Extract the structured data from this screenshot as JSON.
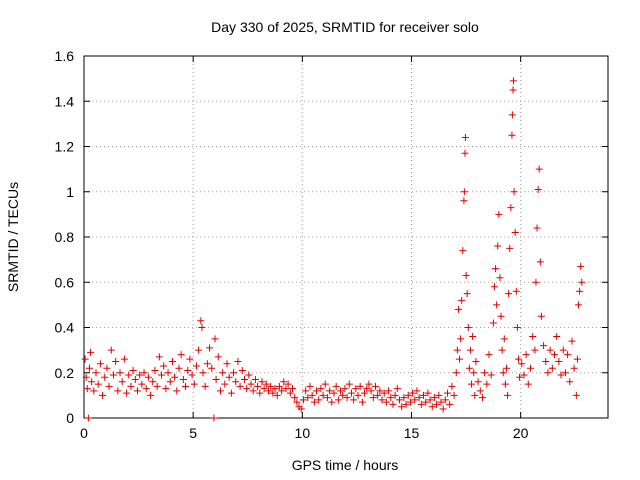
{
  "chart_data": {
    "type": "scatter",
    "title": "Day 330 of 2025, SRMTID for receiver solo",
    "xlabel": "GPS time / hours",
    "ylabel": "SRMTID / TECUs",
    "xlim": [
      0,
      24
    ],
    "ylim": [
      0,
      1.6
    ],
    "x_ticks": [
      "0",
      "5",
      "10",
      "15",
      "20"
    ],
    "y_ticks": [
      "0",
      "0.2",
      "0.4",
      "0.6",
      "0.8",
      "1",
      "1.2",
      "1.4",
      "1.6"
    ],
    "grid": true,
    "marker": "plus",
    "series_color": "#e00000",
    "series": [
      {
        "name": "SRMTID",
        "points": [
          [
            0.05,
            0.26
          ],
          [
            0.1,
            0.18
          ],
          [
            0.15,
            0.13
          ],
          [
            0.2,
            0.0
          ],
          [
            0.25,
            0.22
          ],
          [
            0.3,
            0.29
          ],
          [
            0.35,
            0.16
          ],
          [
            0.45,
            0.12
          ],
          [
            0.55,
            0.2
          ],
          [
            0.65,
            0.15
          ],
          [
            0.75,
            0.24
          ],
          [
            0.85,
            0.1
          ],
          [
            0.95,
            0.18
          ],
          [
            1.05,
            0.22
          ],
          [
            1.15,
            0.14
          ],
          [
            1.25,
            0.3
          ],
          [
            1.35,
            0.19
          ],
          [
            1.45,
            0.25
          ],
          [
            1.55,
            0.12
          ],
          [
            1.65,
            0.2
          ],
          [
            1.75,
            0.16
          ],
          [
            1.85,
            0.26
          ],
          [
            1.95,
            0.11
          ],
          [
            2.05,
            0.19
          ],
          [
            2.15,
            0.14
          ],
          [
            2.25,
            0.21
          ],
          [
            2.35,
            0.17
          ],
          [
            2.45,
            0.12
          ],
          [
            2.55,
            0.19
          ],
          [
            2.65,
            0.15
          ],
          [
            2.75,
            0.2
          ],
          [
            2.85,
            0.13
          ],
          [
            2.95,
            0.18
          ],
          [
            3.05,
            0.1
          ],
          [
            3.15,
            0.16
          ],
          [
            3.25,
            0.21
          ],
          [
            3.35,
            0.14
          ],
          [
            3.45,
            0.27
          ],
          [
            3.55,
            0.19
          ],
          [
            3.65,
            0.23
          ],
          [
            3.75,
            0.13
          ],
          [
            3.85,
            0.2
          ],
          [
            3.95,
            0.16
          ],
          [
            4.05,
            0.25
          ],
          [
            4.15,
            0.18
          ],
          [
            4.25,
            0.12
          ],
          [
            4.35,
            0.22
          ],
          [
            4.45,
            0.28
          ],
          [
            4.55,
            0.17
          ],
          [
            4.65,
            0.14
          ],
          [
            4.75,
            0.21
          ],
          [
            4.85,
            0.26
          ],
          [
            4.95,
            0.19
          ],
          [
            5.05,
            0.15
          ],
          [
            5.15,
            0.23
          ],
          [
            5.25,
            0.3
          ],
          [
            5.35,
            0.43
          ],
          [
            5.4,
            0.4
          ],
          [
            5.45,
            0.2
          ],
          [
            5.55,
            0.14
          ],
          [
            5.65,
            0.24
          ],
          [
            5.75,
            0.31
          ],
          [
            5.85,
            0.22
          ],
          [
            5.95,
            0.0
          ],
          [
            6.0,
            0.35
          ],
          [
            6.05,
            0.17
          ],
          [
            6.15,
            0.27
          ],
          [
            6.25,
            0.12
          ],
          [
            6.35,
            0.2
          ],
          [
            6.45,
            0.15
          ],
          [
            6.55,
            0.24
          ],
          [
            6.65,
            0.18
          ],
          [
            6.75,
            0.11
          ],
          [
            6.85,
            0.2
          ],
          [
            6.95,
            0.16
          ],
          [
            7.05,
            0.25
          ],
          [
            7.15,
            0.14
          ],
          [
            7.25,
            0.21
          ],
          [
            7.35,
            0.17
          ],
          [
            7.45,
            0.13
          ],
          [
            7.55,
            0.19
          ],
          [
            7.65,
            0.15
          ],
          [
            7.75,
            0.12
          ],
          [
            7.85,
            0.17
          ],
          [
            7.95,
            0.14
          ],
          [
            8.05,
            0.11
          ],
          [
            8.15,
            0.16
          ],
          [
            8.25,
            0.13
          ],
          [
            8.35,
            0.15
          ],
          [
            8.45,
            0.12
          ],
          [
            8.55,
            0.14
          ],
          [
            8.65,
            0.11
          ],
          [
            8.75,
            0.13
          ],
          [
            8.85,
            0.1
          ],
          [
            8.95,
            0.14
          ],
          [
            9.05,
            0.12
          ],
          [
            9.15,
            0.16
          ],
          [
            9.25,
            0.13
          ],
          [
            9.35,
            0.15
          ],
          [
            9.45,
            0.11
          ],
          [
            9.55,
            0.13
          ],
          [
            9.65,
            0.09
          ],
          [
            9.75,
            0.07
          ],
          [
            9.85,
            0.05
          ],
          [
            9.95,
            0.04
          ],
          [
            10.05,
            0.08
          ],
          [
            10.15,
            0.12
          ],
          [
            10.25,
            0.09
          ],
          [
            10.35,
            0.14
          ],
          [
            10.45,
            0.1
          ],
          [
            10.55,
            0.07
          ],
          [
            10.65,
            0.12
          ],
          [
            10.75,
            0.08
          ],
          [
            10.85,
            0.13
          ],
          [
            10.95,
            0.1
          ],
          [
            11.05,
            0.15
          ],
          [
            11.15,
            0.09
          ],
          [
            11.25,
            0.12
          ],
          [
            11.35,
            0.07
          ],
          [
            11.45,
            0.11
          ],
          [
            11.55,
            0.14
          ],
          [
            11.65,
            0.08
          ],
          [
            11.75,
            0.12
          ],
          [
            11.85,
            0.1
          ],
          [
            11.95,
            0.13
          ],
          [
            12.05,
            0.09
          ],
          [
            12.15,
            0.15
          ],
          [
            12.25,
            0.11
          ],
          [
            12.35,
            0.08
          ],
          [
            12.45,
            0.13
          ],
          [
            12.55,
            0.1
          ],
          [
            12.65,
            0.14
          ],
          [
            12.75,
            0.07
          ],
          [
            12.85,
            0.11
          ],
          [
            12.95,
            0.13
          ],
          [
            13.05,
            0.15
          ],
          [
            13.15,
            0.12
          ],
          [
            13.25,
            0.09
          ],
          [
            13.35,
            0.14
          ],
          [
            13.45,
            0.1
          ],
          [
            13.55,
            0.12
          ],
          [
            13.65,
            0.08
          ],
          [
            13.75,
            0.11
          ],
          [
            13.85,
            0.07
          ],
          [
            13.95,
            0.12
          ],
          [
            14.05,
            0.09
          ],
          [
            14.15,
            0.06
          ],
          [
            14.25,
            0.1
          ],
          [
            14.35,
            0.13
          ],
          [
            14.45,
            0.08
          ],
          [
            14.55,
            0.05
          ],
          [
            14.65,
            0.09
          ],
          [
            14.75,
            0.06
          ],
          [
            14.85,
            0.1
          ],
          [
            14.95,
            0.07
          ],
          [
            15.05,
            0.11
          ],
          [
            15.15,
            0.08
          ],
          [
            15.25,
            0.12
          ],
          [
            15.35,
            0.09
          ],
          [
            15.45,
            0.06
          ],
          [
            15.55,
            0.1
          ],
          [
            15.65,
            0.07
          ],
          [
            15.75,
            0.11
          ],
          [
            15.85,
            0.08
          ],
          [
            15.95,
            0.05
          ],
          [
            16.05,
            0.09
          ],
          [
            16.15,
            0.06
          ],
          [
            16.25,
            0.1
          ],
          [
            16.35,
            0.07
          ],
          [
            16.45,
            0.04
          ],
          [
            16.55,
            0.08
          ],
          [
            16.65,
            0.11
          ],
          [
            16.75,
            0.06
          ],
          [
            16.85,
            0.14
          ],
          [
            16.95,
            0.1
          ],
          [
            17.05,
            0.2
          ],
          [
            17.1,
            0.3
          ],
          [
            17.15,
            0.48
          ],
          [
            17.2,
            0.26
          ],
          [
            17.25,
            0.35
          ],
          [
            17.3,
            0.52
          ],
          [
            17.35,
            0.74
          ],
          [
            17.4,
            0.96
          ],
          [
            17.42,
            1.0
          ],
          [
            17.45,
            1.17
          ],
          [
            17.47,
            1.24
          ],
          [
            17.5,
            0.63
          ],
          [
            17.55,
            0.55
          ],
          [
            17.6,
            0.4
          ],
          [
            17.65,
            0.22
          ],
          [
            17.7,
            0.3
          ],
          [
            17.75,
            0.15
          ],
          [
            17.8,
            0.36
          ],
          [
            17.85,
            0.2
          ],
          [
            17.9,
            0.1
          ],
          [
            17.95,
            0.25
          ],
          [
            18.05,
            0.16
          ],
          [
            18.15,
            0.12
          ],
          [
            18.25,
            0.09
          ],
          [
            18.35,
            0.2
          ],
          [
            18.45,
            0.15
          ],
          [
            18.55,
            0.28
          ],
          [
            18.65,
            0.19
          ],
          [
            18.75,
            0.42
          ],
          [
            18.8,
            0.58
          ],
          [
            18.85,
            0.66
          ],
          [
            18.9,
            0.5
          ],
          [
            18.95,
            0.76
          ],
          [
            19.0,
            0.9
          ],
          [
            19.05,
            0.62
          ],
          [
            19.1,
            0.45
          ],
          [
            19.15,
            0.3
          ],
          [
            19.2,
            0.2
          ],
          [
            19.25,
            0.35
          ],
          [
            19.3,
            0.15
          ],
          [
            19.35,
            0.22
          ],
          [
            19.4,
            0.1
          ],
          [
            19.45,
            0.55
          ],
          [
            19.5,
            0.75
          ],
          [
            19.55,
            0.93
          ],
          [
            19.6,
            1.25
          ],
          [
            19.62,
            1.34
          ],
          [
            19.65,
            1.45
          ],
          [
            19.67,
            1.49
          ],
          [
            19.7,
            1.0
          ],
          [
            19.75,
            0.82
          ],
          [
            19.8,
            0.56
          ],
          [
            19.85,
            0.4
          ],
          [
            19.9,
            0.26
          ],
          [
            19.95,
            0.18
          ],
          [
            20.05,
            0.24
          ],
          [
            20.15,
            0.19
          ],
          [
            20.25,
            0.28
          ],
          [
            20.35,
            0.15
          ],
          [
            20.45,
            0.22
          ],
          [
            20.55,
            0.36
          ],
          [
            20.65,
            0.3
          ],
          [
            20.7,
            0.6
          ],
          [
            20.75,
            0.84
          ],
          [
            20.8,
            1.01
          ],
          [
            20.85,
            1.1
          ],
          [
            20.9,
            0.69
          ],
          [
            20.95,
            0.45
          ],
          [
            21.05,
            0.32
          ],
          [
            21.15,
            0.25
          ],
          [
            21.25,
            0.2
          ],
          [
            21.35,
            0.3
          ],
          [
            21.45,
            0.22
          ],
          [
            21.55,
            0.28
          ],
          [
            21.65,
            0.36
          ],
          [
            21.75,
            0.25
          ],
          [
            21.85,
            0.19
          ],
          [
            21.95,
            0.3
          ],
          [
            22.05,
            0.2
          ],
          [
            22.15,
            0.28
          ],
          [
            22.25,
            0.16
          ],
          [
            22.35,
            0.34
          ],
          [
            22.45,
            0.22
          ],
          [
            22.55,
            0.1
          ],
          [
            22.6,
            0.26
          ],
          [
            22.65,
            0.5
          ],
          [
            22.7,
            0.56
          ],
          [
            22.75,
            0.67
          ],
          [
            22.8,
            0.6
          ]
        ]
      }
    ]
  }
}
